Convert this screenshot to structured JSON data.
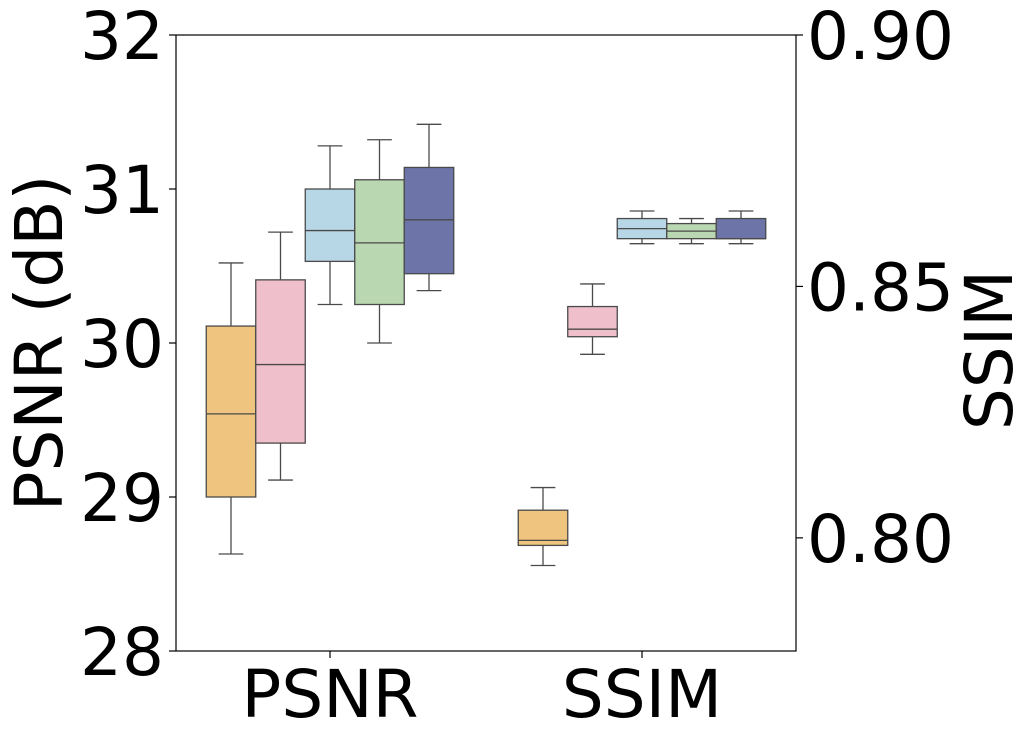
{
  "chart_data": {
    "type": "box",
    "categories": [
      "PSNR",
      "SSIM"
    ],
    "left_axis": {
      "label": "PSNR (dB)",
      "ylim": [
        28,
        32
      ],
      "ticks": [
        "28",
        "29",
        "30",
        "31",
        "32"
      ]
    },
    "right_axis": {
      "label": "SSIM",
      "ylim": [
        0.7775,
        0.9
      ],
      "ticks": [
        "0.80",
        "0.85",
        "0.90"
      ]
    },
    "grid": false,
    "legend": "none",
    "series": [
      {
        "color": "#EEC47E",
        "psnr": {
          "min": 28.63,
          "q1": 29.0,
          "median": 29.54,
          "q3": 30.11,
          "max": 30.52
        },
        "ssim": {
          "min": 0.7945,
          "q1": 0.7985,
          "median": 0.7995,
          "q3": 0.8055,
          "max": 0.81
        }
      },
      {
        "color": "#EFBFCB",
        "psnr": {
          "min": 29.11,
          "q1": 29.35,
          "median": 29.86,
          "q3": 30.41,
          "max": 30.72
        },
        "ssim": {
          "min": 0.8365,
          "q1": 0.84,
          "median": 0.8415,
          "q3": 0.846,
          "max": 0.8505
        }
      },
      {
        "color": "#B7D6E6",
        "psnr": {
          "min": 30.25,
          "q1": 30.53,
          "median": 30.73,
          "q3": 31.0,
          "max": 31.28
        },
        "ssim": {
          "min": 0.8585,
          "q1": 0.8595,
          "median": 0.8615,
          "q3": 0.8635,
          "max": 0.865
        }
      },
      {
        "color": "#B9D7B0",
        "psnr": {
          "min": 30.0,
          "q1": 30.25,
          "median": 30.65,
          "q3": 31.06,
          "max": 31.32
        },
        "ssim": {
          "min": 0.8585,
          "q1": 0.8595,
          "median": 0.861,
          "q3": 0.8625,
          "max": 0.8635
        }
      },
      {
        "color": "#6C74A8",
        "psnr": {
          "min": 30.34,
          "q1": 30.45,
          "median": 30.8,
          "q3": 31.14,
          "max": 31.42
        },
        "ssim": {
          "min": 0.8585,
          "q1": 0.8595,
          "median": 0.8595,
          "q3": 0.8635,
          "max": 0.865
        }
      }
    ]
  }
}
